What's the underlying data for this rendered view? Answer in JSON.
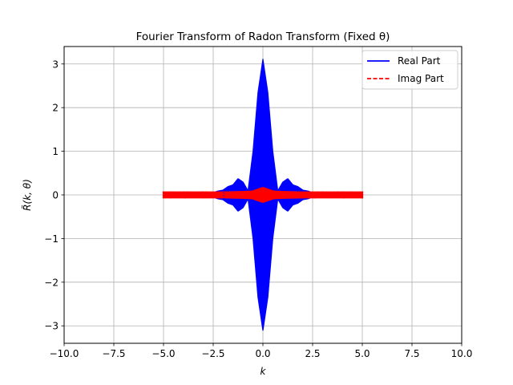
{
  "chart_data": {
    "type": "line",
    "title": "Fourier Transform of Radon Transform (Fixed θ)",
    "xlabel": "k",
    "ylabel": "R̃(k, θ)",
    "xlim": [
      -10,
      10
    ],
    "ylim": [
      -3.4,
      3.4
    ],
    "xticks": [
      -10,
      -7.5,
      -5,
      -2.5,
      0,
      2.5,
      5,
      7.5,
      10
    ],
    "xtick_labels": [
      "−10.0",
      "−7.5",
      "−5.0",
      "−2.5",
      "0.0",
      "2.5",
      "5.0",
      "7.5",
      "10.0"
    ],
    "yticks": [
      -3,
      -2,
      -1,
      0,
      1,
      2,
      3
    ],
    "ytick_labels": [
      "−3",
      "−2",
      "−1",
      "0",
      "1",
      "2",
      "3"
    ],
    "grid": true,
    "legend_position": "top-right",
    "series": [
      {
        "name": "Real Part",
        "color": "#0000ff",
        "style": "solid",
        "x": [
          -5.0,
          -4.5,
          -4.0,
          -3.5,
          -3.0,
          -2.5,
          -2.25,
          -2.0,
          -1.75,
          -1.5,
          -1.25,
          -1.0,
          -0.75,
          -0.5,
          -0.25,
          0.0,
          0.25,
          0.5,
          0.75,
          1.0,
          1.25,
          1.5,
          1.75,
          2.0,
          2.25,
          2.5,
          3.0,
          3.5,
          4.0,
          4.5,
          5.0
        ],
        "envelope": [
          0.01,
          0.01,
          0.02,
          0.03,
          0.04,
          0.06,
          0.1,
          0.12,
          0.2,
          0.24,
          0.38,
          0.3,
          0.1,
          1.0,
          2.35,
          3.12,
          2.35,
          1.0,
          0.1,
          0.3,
          0.38,
          0.24,
          0.2,
          0.12,
          0.1,
          0.06,
          0.04,
          0.03,
          0.02,
          0.01,
          0.01
        ]
      },
      {
        "name": "Imag Part",
        "color": "#ff0000",
        "style": "dashed",
        "x": [
          -5.0,
          -4.0,
          -3.0,
          -2.0,
          -1.0,
          -0.5,
          -0.25,
          0.0,
          0.25,
          0.5,
          1.0,
          2.0,
          3.0,
          4.0,
          5.0
        ],
        "envelope": [
          0.08,
          0.08,
          0.08,
          0.08,
          0.09,
          0.1,
          0.14,
          0.18,
          0.14,
          0.1,
          0.09,
          0.08,
          0.08,
          0.08,
          0.08
        ]
      }
    ]
  }
}
